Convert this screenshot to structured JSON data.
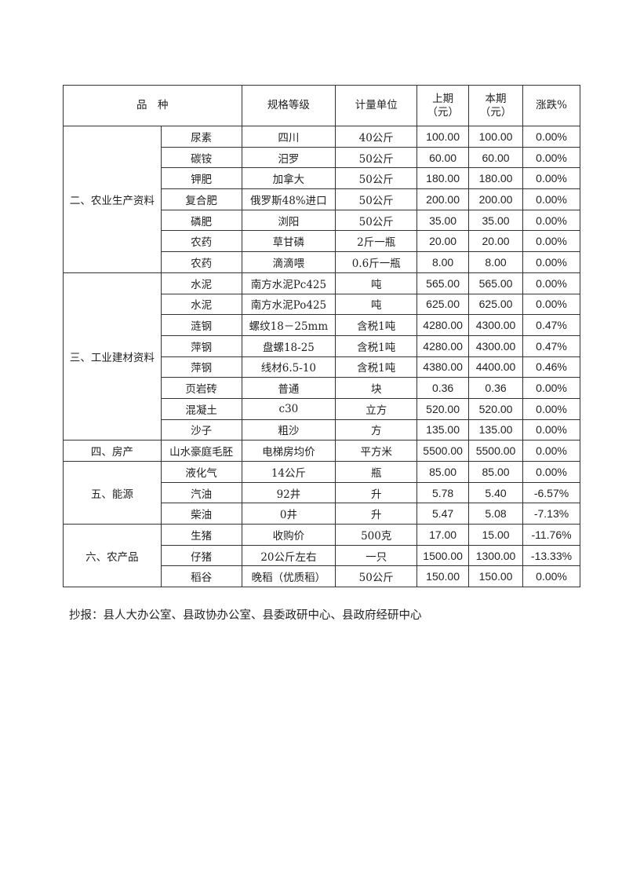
{
  "table": {
    "headers": {
      "variety": "品　种",
      "spec": "规格等级",
      "unit": "计量单位",
      "prev": "上期\n（元）",
      "curr": "本期\n（元）",
      "change": "涨跌%"
    },
    "groups": [
      {
        "category": "二、农业生产资料",
        "rows": [
          [
            "尿素",
            "四川",
            "40公斤",
            "100.00",
            "100.00",
            "0.00%"
          ],
          [
            "碳铵",
            "汨罗",
            "50公斤",
            "60.00",
            "60.00",
            "0.00%"
          ],
          [
            "钾肥",
            "加拿大",
            "50公斤",
            "180.00",
            "180.00",
            "0.00%"
          ],
          [
            "复合肥",
            "俄罗斯48%进口",
            "50公斤",
            "200.00",
            "200.00",
            "0.00%"
          ],
          [
            "磷肥",
            "浏阳",
            "50公斤",
            "35.00",
            "35.00",
            "0.00%"
          ],
          [
            "农药",
            "草甘磷",
            "2斤一瓶",
            "20.00",
            "20.00",
            "0.00%"
          ],
          [
            "农药",
            "滴滴喂",
            "0.6斤一瓶",
            "8.00",
            "8.00",
            "0.00%"
          ]
        ]
      },
      {
        "category": "三、工业建材资料",
        "rows": [
          [
            "水泥",
            "南方水泥Pc425",
            "吨",
            "565.00",
            "565.00",
            "0.00%"
          ],
          [
            "水泥",
            "南方水泥Po425",
            "吨",
            "625.00",
            "625.00",
            "0.00%"
          ],
          [
            "涟钢",
            "螺纹18－25mm",
            "含税1吨",
            "4280.00",
            "4300.00",
            "0.47%"
          ],
          [
            "萍钢",
            "盘螺18-25",
            "含税1吨",
            "4280.00",
            "4300.00",
            "0.47%"
          ],
          [
            "萍钢",
            "线材6.5-10",
            "含税1吨",
            "4380.00",
            "4400.00",
            "0.46%"
          ],
          [
            "页岩砖",
            "普通",
            "块",
            "0.36",
            "0.36",
            "0.00%"
          ],
          [
            "混凝土",
            "c30",
            "立方",
            "520.00",
            "520.00",
            "0.00%"
          ],
          [
            "沙子",
            "粗沙",
            "方",
            "135.00",
            "135.00",
            "0.00%"
          ]
        ]
      },
      {
        "category": "四、房产",
        "rows": [
          [
            "山水豪庭毛胚",
            "电梯房均价",
            "平方米",
            "5500.00",
            "5500.00",
            "0.00%"
          ]
        ]
      },
      {
        "category": "五、能源",
        "rows": [
          [
            "液化气",
            "14公斤",
            "瓶",
            "85.00",
            "85.00",
            "0.00%"
          ],
          [
            "汽油",
            "92井",
            "升",
            "5.78",
            "5.40",
            "-6.57%"
          ],
          [
            "柴油",
            "0井",
            "升",
            "5.47",
            "5.08",
            "-7.13%"
          ]
        ]
      },
      {
        "category": "六、农产品",
        "rows": [
          [
            "生猪",
            "收购价",
            "500克",
            "17.00",
            "15.00",
            "-11.76%"
          ],
          [
            "仔猪",
            "20公斤左右",
            "一只",
            "1500.00",
            "1300.00",
            "-13.33%"
          ],
          [
            "稻谷",
            "晚稻（优质稻）",
            "50公斤",
            "150.00",
            "150.00",
            "0.00%"
          ]
        ]
      }
    ]
  },
  "note": "抄报：县人大办公室、县政协办公室、县委政研中心、县政府经研中心"
}
